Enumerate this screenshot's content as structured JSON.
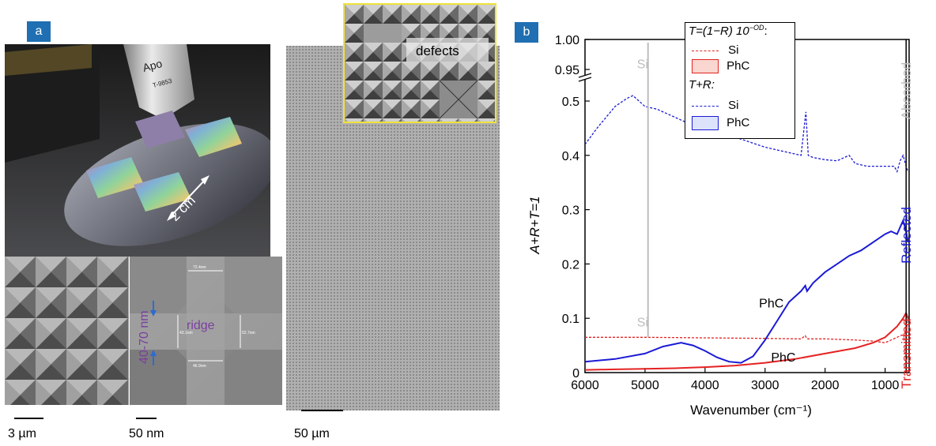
{
  "panel_a": {
    "label": "a",
    "wafer_photo": {
      "size_label": "2 cm",
      "objective_text": "Apo",
      "objective_number": "T-9853"
    },
    "sem_pattern": {
      "scale_label": "3 µm"
    },
    "sem_closeup": {
      "scale_label": "50 nm",
      "ridge_label": "ridge",
      "height_label": "40-70 nm",
      "measurements": [
        "72.4nm",
        "43.1nm",
        "52.7nm",
        "46.9nm"
      ]
    },
    "sem_large": {
      "scale_label": "50 µm",
      "inset_label": "defects"
    }
  },
  "panel_b": {
    "label": "b",
    "legend": {
      "header1": "T=(1−R) 10",
      "header1_exp": "−OD",
      "header1_tail": ":",
      "items1": [
        {
          "name": "Si",
          "style": "dash",
          "color": "#e52222"
        },
        {
          "name": "PhC",
          "style": "box",
          "color": "#e52222"
        }
      ],
      "header2": "T+R:",
      "items2": [
        {
          "name": "Si",
          "style": "dash",
          "color": "#1a1ad6"
        },
        {
          "name": "PhC",
          "style": "box",
          "color": "#1a1ad6"
        }
      ]
    },
    "right_labels": [
      {
        "text": "Absorbed",
        "color": "#bdbdbd"
      },
      {
        "text": "Reflected",
        "color": "#1a1ad6"
      },
      {
        "text": "Transmitted",
        "color": "#e52222"
      }
    ],
    "annotations": [
      "Si",
      "Si",
      "PhC",
      "PhC"
    ]
  },
  "chart_data": {
    "type": "line",
    "xlabel": "Wavenumber (cm⁻¹)",
    "ylabel": "A+R+T=1",
    "xlim": [
      6000,
      600
    ],
    "xticks": [
      6000,
      5000,
      4000,
      3000,
      2000,
      1000
    ],
    "yticks": [
      0,
      0.1,
      0.2,
      0.3,
      0.4,
      0.5,
      0.95,
      1.0
    ],
    "ytick_labels": [
      "0",
      "0.1",
      "0.2",
      "0.3",
      "0.4",
      "0.5",
      "0.95",
      "1.00"
    ],
    "y_axis_break": [
      0.55,
      0.95
    ],
    "series": [
      {
        "name": "Si",
        "group": "T+R",
        "color": "#1a1ad6",
        "style": "dotted",
        "x": [
          6000,
          5800,
          5500,
          5300,
          5200,
          5000,
          4800,
          4500,
          4200,
          4000,
          3700,
          3400,
          3000,
          2600,
          2400,
          2320,
          2280,
          2200,
          2000,
          1800,
          1600,
          1500,
          1300,
          1100,
          950,
          850,
          800,
          750,
          700,
          650,
          620
        ],
        "y": [
          0.42,
          0.45,
          0.49,
          0.505,
          0.51,
          0.49,
          0.485,
          0.47,
          0.455,
          0.447,
          0.44,
          0.43,
          0.415,
          0.405,
          0.4,
          0.48,
          0.4,
          0.396,
          0.392,
          0.39,
          0.4,
          0.385,
          0.38,
          0.38,
          0.38,
          0.38,
          0.37,
          0.39,
          0.4,
          0.38,
          0.37
        ]
      },
      {
        "name": "PhC",
        "group": "T+R",
        "color": "#1a1ad6",
        "style": "solid",
        "x": [
          6000,
          5500,
          5000,
          4700,
          4400,
          4200,
          4000,
          3800,
          3600,
          3400,
          3200,
          3000,
          2800,
          2600,
          2400,
          2330,
          2300,
          2200,
          2000,
          1800,
          1600,
          1400,
          1200,
          1000,
          900,
          800,
          700,
          650,
          620
        ],
        "y": [
          0.02,
          0.025,
          0.035,
          0.048,
          0.055,
          0.05,
          0.04,
          0.028,
          0.02,
          0.018,
          0.03,
          0.06,
          0.095,
          0.13,
          0.15,
          0.16,
          0.15,
          0.165,
          0.185,
          0.2,
          0.215,
          0.225,
          0.24,
          0.255,
          0.26,
          0.255,
          0.28,
          0.26,
          0.24
        ]
      },
      {
        "name": "Si",
        "group": "T=(1-R)10^-OD",
        "color": "#e52222",
        "style": "dotted",
        "x": [
          6000,
          5000,
          4000,
          3000,
          2400,
          2330,
          2300,
          2000,
          1500,
          1200,
          1000,
          900,
          800,
          700,
          650,
          620
        ],
        "y": [
          0.065,
          0.065,
          0.064,
          0.063,
          0.062,
          0.068,
          0.062,
          0.062,
          0.06,
          0.058,
          0.055,
          0.06,
          0.065,
          0.07,
          0.075,
          0.1
        ]
      },
      {
        "name": "PhC",
        "group": "T=(1-R)10^-OD",
        "color": "#e52222",
        "style": "solid",
        "x": [
          6000,
          5500,
          5000,
          4500,
          4000,
          3500,
          3000,
          2500,
          2000,
          1500,
          1200,
          1000,
          900,
          800,
          700,
          650,
          620
        ],
        "y": [
          0.005,
          0.006,
          0.007,
          0.008,
          0.01,
          0.013,
          0.018,
          0.025,
          0.035,
          0.045,
          0.055,
          0.065,
          0.075,
          0.085,
          0.1,
          0.11,
          0.1
        ]
      }
    ]
  }
}
